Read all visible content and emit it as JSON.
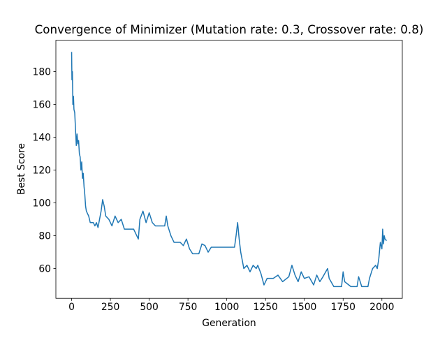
{
  "chart_data": {
    "type": "line",
    "title": "Convergence of Minimizer (Mutation rate: 0.3, Crossover rate: 0.8)",
    "x_label": "Generation",
    "y_label": "Best Score",
    "x": [
      0,
      2,
      5,
      8,
      12,
      15,
      20,
      25,
      30,
      35,
      40,
      45,
      50,
      55,
      60,
      65,
      70,
      75,
      80,
      85,
      90,
      95,
      100,
      110,
      120,
      140,
      150,
      160,
      170,
      180,
      190,
      200,
      210,
      220,
      240,
      260,
      280,
      300,
      320,
      340,
      400,
      430,
      440,
      460,
      480,
      500,
      520,
      540,
      600,
      610,
      620,
      640,
      660,
      700,
      720,
      740,
      760,
      780,
      820,
      840,
      860,
      880,
      900,
      1000,
      1050,
      1060,
      1070,
      1080,
      1090,
      1110,
      1130,
      1150,
      1170,
      1190,
      1200,
      1220,
      1240,
      1260,
      1300,
      1330,
      1360,
      1400,
      1420,
      1440,
      1460,
      1480,
      1500,
      1530,
      1560,
      1580,
      1600,
      1620,
      1650,
      1660,
      1690,
      1740,
      1750,
      1760,
      1800,
      1840,
      1850,
      1870,
      1910,
      1920,
      1940,
      1960,
      1970,
      1980,
      1990,
      2000,
      2005,
      2010,
      2015,
      2020,
      2030
    ],
    "values": [
      192,
      175,
      180,
      160,
      165,
      157,
      155,
      145,
      135,
      142,
      136,
      138,
      130,
      128,
      120,
      125,
      115,
      118,
      110,
      105,
      98,
      95,
      94,
      92,
      88,
      88,
      86,
      88,
      85,
      90,
      95,
      102,
      98,
      92,
      90,
      86,
      92,
      88,
      90,
      84,
      84,
      78,
      90,
      95,
      88,
      94,
      88,
      86,
      86,
      92,
      86,
      80,
      76,
      76,
      74,
      78,
      72,
      69,
      69,
      75,
      74,
      70,
      73,
      73,
      73,
      80,
      88,
      78,
      70,
      60,
      62,
      58,
      62,
      60,
      62,
      57,
      50,
      54,
      54,
      56,
      52,
      55,
      62,
      56,
      52,
      58,
      54,
      55,
      50,
      56,
      52,
      55,
      60,
      54,
      49,
      49,
      58,
      52,
      49,
      49,
      55,
      49,
      49,
      54,
      60,
      62,
      60,
      66,
      76,
      72,
      84,
      75,
      80,
      78,
      77
    ],
    "color": "#1f77b4",
    "xlim": [
      -101.5,
      2131.5
    ],
    "ylim": [
      41.85,
      199.15
    ],
    "xticks": [
      0,
      250,
      500,
      750,
      1000,
      1250,
      1500,
      1750,
      2000
    ],
    "yticks": [
      60,
      80,
      100,
      120,
      140,
      160,
      180
    ]
  }
}
